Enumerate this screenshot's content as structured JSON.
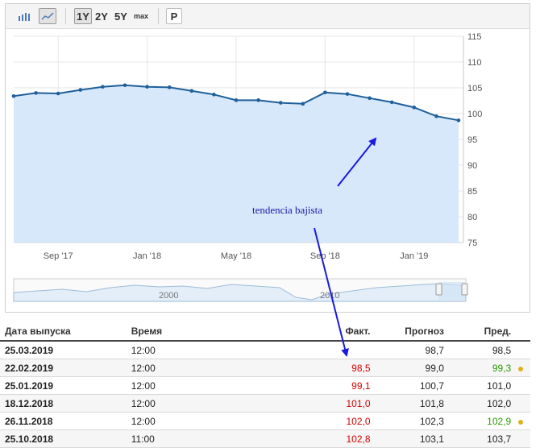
{
  "toolbar": {
    "bar_icon": "bar-chart-icon",
    "line_icon": "line-chart-icon",
    "range_1y": "1Y",
    "range_2y": "2Y",
    "range_5y": "5Y",
    "range_max": "max",
    "p_label": "P"
  },
  "chart_data": {
    "type": "area",
    "title": "",
    "xlabel": "",
    "ylabel": "",
    "ylim": [
      75,
      115
    ],
    "yticks": [
      75,
      80,
      85,
      90,
      95,
      100,
      105,
      110,
      115
    ],
    "xtick_labels": [
      "Sep '17",
      "Jan '18",
      "May '18",
      "Sep '18",
      "Jan '19"
    ],
    "x": [
      "2017-07",
      "2017-08",
      "2017-09",
      "2017-10",
      "2017-11",
      "2017-12",
      "2018-01",
      "2018-02",
      "2018-03",
      "2018-04",
      "2018-05",
      "2018-06",
      "2018-07",
      "2018-08",
      "2018-09",
      "2018-10",
      "2018-11",
      "2018-12",
      "2019-01",
      "2019-02",
      "2019-03"
    ],
    "series": [
      {
        "values": [
          103.4,
          104.0,
          103.9,
          104.6,
          105.2,
          105.5,
          105.2,
          105.1,
          104.4,
          103.7,
          102.6,
          102.6,
          102.1,
          101.9,
          104.1,
          103.8,
          103.0,
          102.2,
          101.2,
          99.5,
          98.7
        ]
      }
    ],
    "grid": true,
    "navigator": {
      "labels": [
        "2000",
        "2010"
      ]
    }
  },
  "annotation": {
    "text": "tendencia bajista"
  },
  "colors": {
    "line": "#1f5f9a",
    "fill": "#d6e8fa",
    "arrow": "#1a1ae0",
    "negative": "#d60000",
    "positive": "#2a9a00",
    "dot": "#e0b020"
  },
  "table": {
    "headers": [
      "Дата выпуска",
      "Время",
      "Факт.",
      "Прогноз",
      "Пред."
    ],
    "rows": [
      {
        "date": "25.03.2019",
        "time": "12:00",
        "actual": "",
        "forecast": "98,7",
        "previous": "98,5",
        "dot": false
      },
      {
        "date": "22.02.2019",
        "time": "12:00",
        "actual": "98,5",
        "forecast": "99,0",
        "previous": "99,3",
        "dot": true
      },
      {
        "date": "25.01.2019",
        "time": "12:00",
        "actual": "99,1",
        "forecast": "100,7",
        "previous": "101,0",
        "dot": false
      },
      {
        "date": "18.12.2018",
        "time": "12:00",
        "actual": "101,0",
        "forecast": "101,8",
        "previous": "102,0",
        "dot": false
      },
      {
        "date": "26.11.2018",
        "time": "12:00",
        "actual": "102,0",
        "forecast": "102,3",
        "previous": "102,9",
        "dot": true
      },
      {
        "date": "25.10.2018",
        "time": "11:00",
        "actual": "102,8",
        "forecast": "103,1",
        "previous": "103,7",
        "dot": false
      }
    ]
  }
}
